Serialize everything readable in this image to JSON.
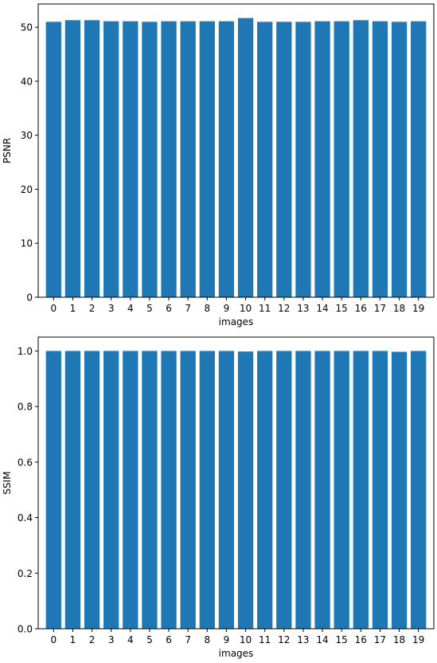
{
  "chart_data": [
    {
      "type": "bar",
      "categories": [
        "0",
        "1",
        "2",
        "3",
        "4",
        "5",
        "6",
        "7",
        "8",
        "9",
        "10",
        "11",
        "12",
        "13",
        "14",
        "15",
        "16",
        "17",
        "18",
        "19"
      ],
      "values": [
        51.0,
        51.3,
        51.3,
        51.1,
        51.1,
        51.0,
        51.1,
        51.1,
        51.1,
        51.1,
        51.7,
        51.0,
        51.0,
        51.0,
        51.1,
        51.1,
        51.3,
        51.1,
        51.0,
        51.1
      ],
      "title": "",
      "xlabel": "images",
      "ylabel": "PSNR",
      "ylim": [
        0,
        54.3
      ],
      "yticks": [
        0,
        10,
        20,
        30,
        40,
        50
      ],
      "ytick_labels": [
        "0",
        "10",
        "20",
        "30",
        "40",
        "50"
      ],
      "grid": false,
      "bar_color": "#1f77b4"
    },
    {
      "type": "bar",
      "categories": [
        "0",
        "1",
        "2",
        "3",
        "4",
        "5",
        "6",
        "7",
        "8",
        "9",
        "10",
        "11",
        "12",
        "13",
        "14",
        "15",
        "16",
        "17",
        "18",
        "19"
      ],
      "values": [
        1.0,
        1.0,
        1.0,
        1.0,
        1.0,
        1.0,
        1.0,
        1.0,
        1.0,
        1.0,
        0.998,
        1.0,
        1.0,
        1.0,
        1.0,
        1.0,
        1.0,
        1.0,
        0.997,
        1.0
      ],
      "title": "",
      "xlabel": "images",
      "ylabel": "SSIM",
      "ylim": [
        0,
        1.05
      ],
      "yticks": [
        0,
        0.2,
        0.4,
        0.6,
        0.8,
        1.0
      ],
      "ytick_labels": [
        "0.0",
        "0.2",
        "0.4",
        "0.6",
        "0.8",
        "1.0"
      ],
      "grid": false,
      "bar_color": "#1f77b4"
    }
  ]
}
